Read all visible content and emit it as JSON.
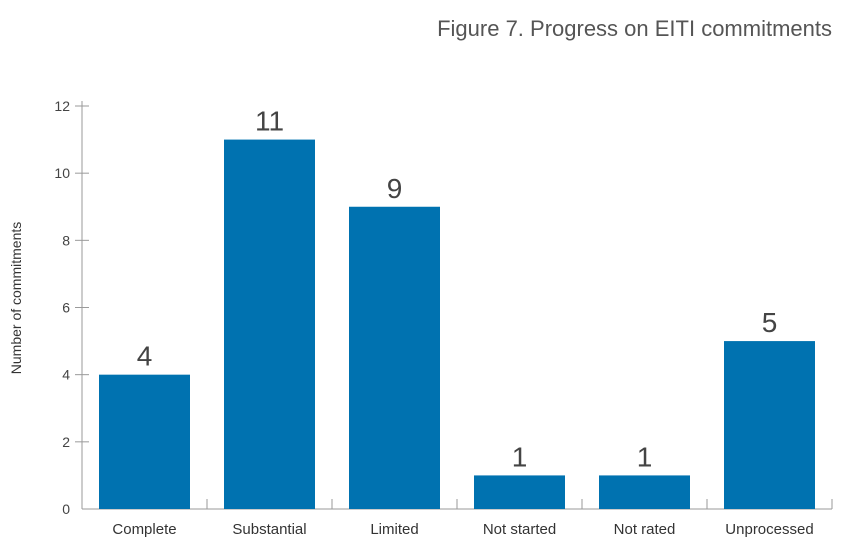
{
  "chart_data": {
    "type": "bar",
    "title": "Figure 7. Progress on EITI commitments",
    "xlabel": "",
    "ylabel": "Number of commitments",
    "categories": [
      "Complete",
      "Substantial",
      "Limited",
      "Not started",
      "Not rated",
      "Unprocessed"
    ],
    "values": [
      4,
      11,
      9,
      1,
      1,
      5
    ],
    "ylim": [
      0,
      12
    ],
    "yticks": [
      "0",
      "2",
      "4",
      "6",
      "8",
      "10",
      "12"
    ],
    "data_labels": [
      "4",
      "11",
      "9",
      "1",
      "1",
      "5"
    ],
    "grid": false,
    "legend": "none",
    "bar_color": "#0072b0"
  }
}
